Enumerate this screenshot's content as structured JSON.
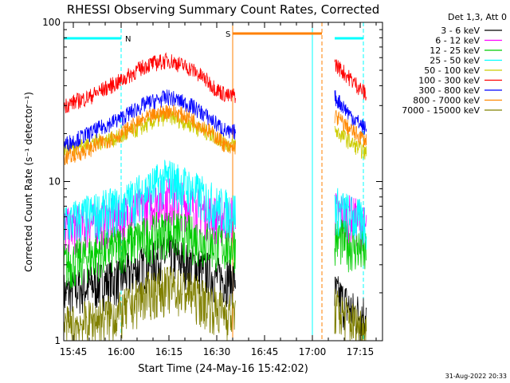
{
  "chart_data": {
    "type": "line",
    "title": "RHESSI Observing Summary Count Rates, Corrected",
    "xlabel": "Start Time (24-May-16 15:42:02)",
    "ylabel": "Corrected Count Rate (s⁻¹ detector⁻¹)",
    "y_scale": "log",
    "xlim": [
      "15:42",
      "17:22"
    ],
    "ylim": [
      1,
      100
    ],
    "x_ticks": [
      "15:45",
      "16:00",
      "16:15",
      "16:30",
      "16:45",
      "17:00",
      "17:15"
    ],
    "y_ticks": [
      1,
      10,
      100
    ],
    "y_tick_labels": [
      "1",
      "10",
      "100"
    ],
    "legend_title": "Det 1,3, Att 0",
    "legend_position": "right",
    "timestamp": "31-Aug-2022 20:33",
    "data_gap": [
      "16:36",
      "17:07"
    ],
    "series": [
      {
        "name": "3 - 6 keV",
        "color": "#000000",
        "x": [
          "15:42",
          "16:00",
          "16:15",
          "16:30",
          "16:34",
          "17:07",
          "17:13",
          "17:17"
        ],
        "y": [
          2.0,
          2.5,
          3.5,
          2.5,
          2.5,
          2.0,
          1.5,
          1.5
        ]
      },
      {
        "name": "6 - 12 keV",
        "color": "#ff00ff",
        "x": [
          "15:42",
          "16:00",
          "16:15",
          "16:30",
          "16:34",
          "17:07",
          "17:13",
          "17:17"
        ],
        "y": [
          5.0,
          6.0,
          8.0,
          6.0,
          6.0,
          6.5,
          6.0,
          5.0
        ]
      },
      {
        "name": "12 - 25 keV",
        "color": "#00cc00",
        "x": [
          "15:42",
          "16:00",
          "16:15",
          "16:30",
          "16:34",
          "17:07",
          "17:13",
          "17:17"
        ],
        "y": [
          3.0,
          4.0,
          5.0,
          4.0,
          4.0,
          4.5,
          4.0,
          3.5
        ]
      },
      {
        "name": "25 - 50 keV",
        "color": "#00ffff",
        "x": [
          "15:42",
          "16:00",
          "16:15",
          "16:30",
          "16:34",
          "17:07",
          "17:13",
          "17:17"
        ],
        "y": [
          5.5,
          7.0,
          10.5,
          7.0,
          6.5,
          7.0,
          6.0,
          5.5
        ]
      },
      {
        "name": "50 - 100 keV",
        "color": "#cccc00",
        "x": [
          "15:42",
          "16:00",
          "16:15",
          "16:30",
          "16:34",
          "17:07",
          "17:13",
          "17:17"
        ],
        "y": [
          16.0,
          19.0,
          26.0,
          19.0,
          17.0,
          21.0,
          17.0,
          15.0
        ]
      },
      {
        "name": "100 - 300 keV",
        "color": "#ff0000",
        "x": [
          "15:42",
          "15:50",
          "16:00",
          "16:08",
          "16:15",
          "16:22",
          "16:30",
          "16:34",
          "17:07",
          "17:12",
          "17:17"
        ],
        "y": [
          30.0,
          34.0,
          43.0,
          54.0,
          58.0,
          51.0,
          38.0,
          34.0,
          55.0,
          44.0,
          35.0
        ]
      },
      {
        "name": "300 - 800 keV",
        "color": "#0000ff",
        "x": [
          "15:42",
          "15:50",
          "16:00",
          "16:08",
          "16:15",
          "16:22",
          "16:30",
          "16:34",
          "17:07",
          "17:12",
          "17:17"
        ],
        "y": [
          17.0,
          20.0,
          25.0,
          31.0,
          34.0,
          30.0,
          23.0,
          20.0,
          34.0,
          26.0,
          21.0
        ]
      },
      {
        "name": "800 - 7000 keV",
        "color": "#ff8800",
        "x": [
          "15:42",
          "15:50",
          "16:00",
          "16:08",
          "16:15",
          "16:22",
          "16:30",
          "16:34",
          "17:07",
          "17:12",
          "17:17"
        ],
        "y": [
          14.0,
          16.0,
          20.0,
          25.0,
          28.0,
          25.0,
          19.0,
          16.0,
          26.0,
          21.0,
          18.0
        ]
      },
      {
        "name": "7000 - 15000 keV",
        "color": "#808000",
        "x": [
          "15:42",
          "16:00",
          "16:08",
          "16:15",
          "16:22",
          "16:30",
          "16:34",
          "17:07",
          "17:13",
          "17:17"
        ],
        "y": [
          1.2,
          1.5,
          2.0,
          2.2,
          2.0,
          1.6,
          1.5,
          1.6,
          1.3,
          1.2
        ]
      }
    ],
    "annotations": [
      {
        "label": "N",
        "color": "#00ffff",
        "start": "15:42",
        "end": "16:00"
      },
      {
        "label": "",
        "color": "#00ffff",
        "start": "17:07",
        "end": "17:16"
      },
      {
        "label": "S",
        "color": "#ff8000",
        "start": "16:35",
        "end": "17:03"
      }
    ],
    "vertical_lines": [
      {
        "time": "15:42",
        "color": "#00ffff",
        "style": "solid"
      },
      {
        "time": "16:00",
        "color": "#00ffff",
        "style": "dashed"
      },
      {
        "time": "16:35",
        "color": "#ff8000",
        "style": "solid"
      },
      {
        "time": "17:00",
        "color": "#00ffff",
        "style": "solid"
      },
      {
        "time": "17:03",
        "color": "#ff8000",
        "style": "dashed"
      },
      {
        "time": "17:16",
        "color": "#00ffff",
        "style": "dashed"
      }
    ]
  }
}
